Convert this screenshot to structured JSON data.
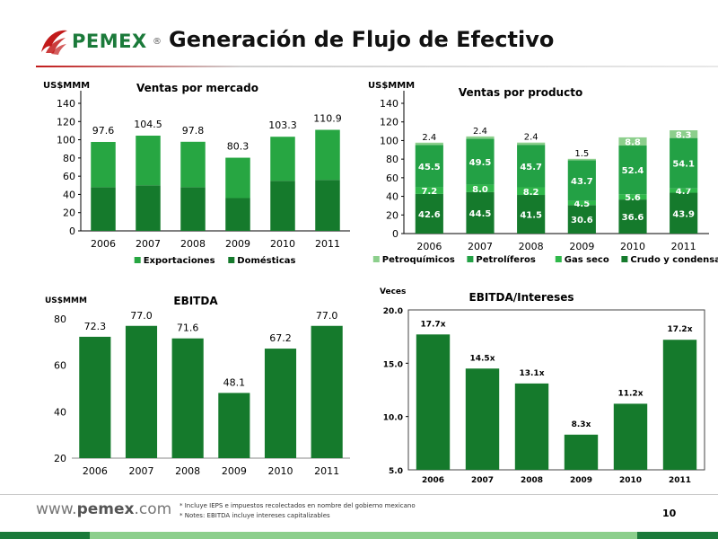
{
  "header": {
    "logo_text": "PEMEX",
    "logo_reg": "®",
    "title": "Generación de Flujo de Efectivo"
  },
  "footer": {
    "site_prefix": "www.",
    "site_brand": "pemex",
    "site_suffix": ".com",
    "note1": "* Incluye IEPS e impuestos recolectados en nombre del gobierno mexicano",
    "note2": "* Notes: EBITDA incluye intereses capitalizables",
    "page": "10"
  },
  "colors": {
    "dark_green": "#157a2c",
    "mid_green": "#27a642",
    "bright_green": "#2fb84a",
    "light_green": "#8ccf8c",
    "brand_red": "#c21a1a"
  },
  "chart_data": [
    {
      "id": "ventas_mercado",
      "type": "bar",
      "stacked": true,
      "title": "Ventas por mercado",
      "ylabel": "US$MMM",
      "categories": [
        "2006",
        "2007",
        "2008",
        "2009",
        "2010",
        "2011"
      ],
      "ylim": [
        0,
        140
      ],
      "yticks": [
        0,
        20,
        40,
        60,
        80,
        100,
        120,
        140
      ],
      "series": [
        {
          "name": "Domésticas",
          "color": "#157a2c",
          "values": [
            48,
            50,
            48,
            36,
            55,
            56
          ]
        },
        {
          "name": "Exportaciones",
          "color": "#27a642",
          "values": [
            49.6,
            54.5,
            49.8,
            44.3,
            48.3,
            54.9
          ]
        }
      ],
      "legend_order": [
        "Exportaciones",
        "Domésticas"
      ],
      "totals": [
        97.6,
        104.5,
        97.8,
        80.3,
        103.3,
        110.9
      ],
      "total_labels": [
        "97.6",
        "104.5",
        "97.8",
        "80.3",
        "103.3",
        "110.9"
      ],
      "legend": "bottom"
    },
    {
      "id": "ventas_producto",
      "type": "bar",
      "stacked": true,
      "title": "Ventas por producto",
      "ylabel": "US$MMM",
      "categories": [
        "2006",
        "2007",
        "2008",
        "2009",
        "2010",
        "2011"
      ],
      "ylim": [
        0,
        140
      ],
      "yticks": [
        0,
        20,
        40,
        60,
        80,
        100,
        120,
        140
      ],
      "series": [
        {
          "name": "Crudo y condensados",
          "color": "#157a2c",
          "values": [
            42.6,
            44.5,
            41.5,
            30.6,
            36.6,
            43.9
          ],
          "labels": [
            "42.6",
            "44.5",
            "41.5",
            "30.6",
            "36.6",
            "43.9"
          ]
        },
        {
          "name": "Gas seco",
          "color": "#2fb84a",
          "values": [
            7.2,
            8.0,
            8.2,
            4.5,
            5.6,
            4.7
          ],
          "labels": [
            "7.2",
            "8.0",
            "8.2",
            "4.5",
            "5.6",
            "4.7"
          ]
        },
        {
          "name": "Petrolíferos",
          "color": "#23a145",
          "values": [
            45.5,
            49.5,
            45.7,
            43.7,
            52.4,
            54.1
          ],
          "labels": [
            "45.5",
            "49.5",
            "45.7",
            "43.7",
            "52.4",
            "54.1"
          ]
        },
        {
          "name": "Petroquímicos",
          "color": "#8ccf8c",
          "values": [
            2.4,
            2.4,
            2.4,
            1.5,
            8.8,
            8.3
          ],
          "labels": [
            "2.4",
            "2.4",
            "2.4",
            "1.5",
            "8.8",
            "8.3"
          ]
        }
      ],
      "legend_order": [
        "Petroquímicos",
        "Petrolíferos",
        "Gas seco",
        "Crudo y condensados"
      ],
      "legend": "bottom"
    },
    {
      "id": "ebitda",
      "type": "bar",
      "title": "EBITDA",
      "ylabel": "US$MMM",
      "categories": [
        "2006",
        "2007",
        "2008",
        "2009",
        "2010",
        "2011"
      ],
      "ylim": [
        20,
        80
      ],
      "yticks": [
        20,
        40,
        60,
        80
      ],
      "values": [
        72.3,
        77.0,
        71.6,
        48.1,
        67.2,
        77.0
      ],
      "labels": [
        "72.3",
        "77.0",
        "71.6",
        "48.1",
        "67.2",
        "77.0"
      ],
      "color": "#157a2c"
    },
    {
      "id": "ebitda_intereses",
      "type": "bar",
      "title": "EBITDA/Intereses",
      "ylabel": "Veces",
      "categories": [
        "2006",
        "2007",
        "2008",
        "2009",
        "2010",
        "2011"
      ],
      "ylim": [
        5,
        20
      ],
      "yticks": [
        5,
        10,
        15,
        20
      ],
      "ytick_labels": [
        "5.0",
        "10.0",
        "15.0",
        "20.0"
      ],
      "values": [
        17.7,
        14.5,
        13.1,
        8.3,
        11.2,
        17.2
      ],
      "labels": [
        "17.7x",
        "14.5x",
        "13.1x",
        "8.3x",
        "11.2x",
        "17.2x"
      ],
      "color": "#157a2c"
    }
  ]
}
